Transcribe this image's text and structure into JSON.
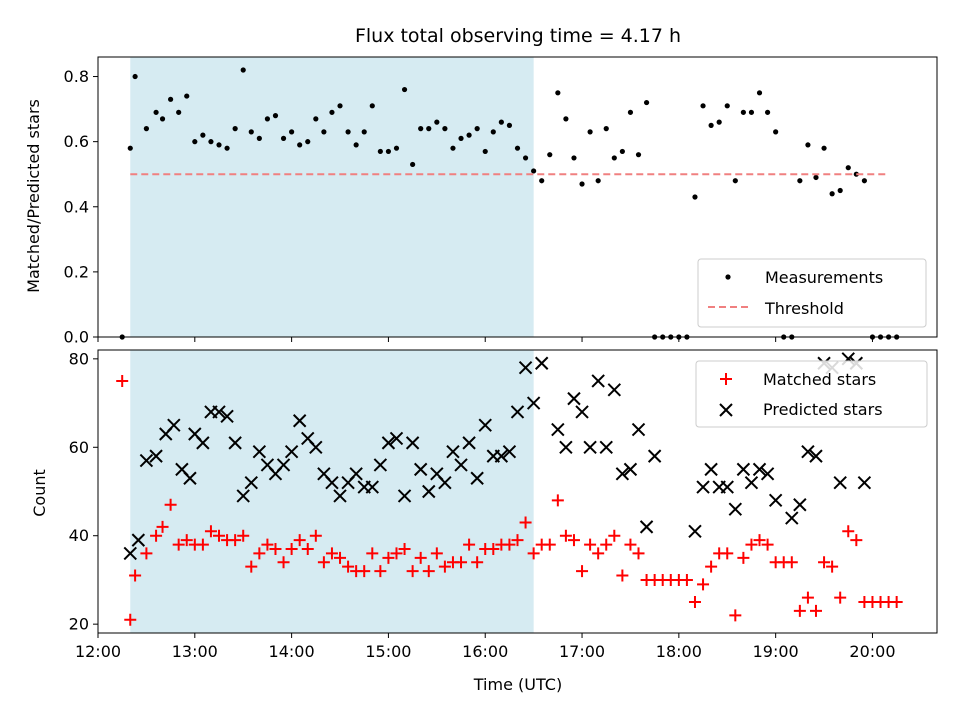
{
  "chart_data": {
    "type": "scatter",
    "title": "Flux total observing time = 4.17 h",
    "xlabel": "Time (UTC)",
    "xlim": [
      "12:00",
      "20:40"
    ],
    "xticks": [
      "12:00",
      "13:00",
      "14:00",
      "15:00",
      "16:00",
      "17:00",
      "18:00",
      "19:00",
      "20:00"
    ],
    "highlight_span": {
      "from": "12:20",
      "to": "16:30",
      "color": "#add8e6"
    },
    "panels": [
      {
        "id": "ratio",
        "ylabel": "Matched/Predicted stars",
        "ylim": [
          0,
          0.86
        ],
        "yticks": [
          "0.0",
          "0.2",
          "0.4",
          "0.6",
          "0.8"
        ],
        "legend_position": "lower-right",
        "series": [
          {
            "name": "Measurements",
            "marker": "dot",
            "color": "#000000",
            "x": [
              "12:15",
              "12:20",
              "12:23",
              "12:30",
              "12:36",
              "12:40",
              "12:45",
              "12:50",
              "12:55",
              "13:00",
              "13:05",
              "13:10",
              "13:15",
              "13:20",
              "13:25",
              "13:30",
              "13:35",
              "13:40",
              "13:45",
              "13:50",
              "13:55",
              "14:00",
              "14:05",
              "14:10",
              "14:15",
              "14:20",
              "14:25",
              "14:30",
              "14:35",
              "14:40",
              "14:45",
              "14:50",
              "14:55",
              "15:00",
              "15:05",
              "15:10",
              "15:15",
              "15:20",
              "15:25",
              "15:30",
              "15:35",
              "15:40",
              "15:45",
              "15:50",
              "15:55",
              "16:00",
              "16:05",
              "16:10",
              "16:15",
              "16:20",
              "16:25",
              "16:30",
              "16:35",
              "16:40",
              "16:45",
              "16:50",
              "16:55",
              "17:00",
              "17:05",
              "17:10",
              "17:15",
              "17:20",
              "17:25",
              "17:30",
              "17:35",
              "17:40",
              "17:45",
              "17:50",
              "17:55",
              "18:00",
              "18:05",
              "18:10",
              "18:15",
              "18:20",
              "18:25",
              "18:30",
              "18:35",
              "18:40",
              "18:45",
              "18:50",
              "18:55",
              "19:00",
              "19:05",
              "19:10",
              "19:15",
              "19:20",
              "19:25",
              "19:30",
              "19:35",
              "19:40",
              "19:45",
              "19:50",
              "19:55",
              "20:00",
              "20:05",
              "20:10",
              "20:15"
            ],
            "y": [
              0.0,
              0.58,
              0.8,
              0.64,
              0.69,
              0.67,
              0.73,
              0.69,
              0.74,
              0.6,
              0.62,
              0.6,
              0.59,
              0.58,
              0.64,
              0.82,
              0.63,
              0.61,
              0.67,
              0.68,
              0.61,
              0.63,
              0.59,
              0.6,
              0.67,
              0.63,
              0.69,
              0.71,
              0.63,
              0.59,
              0.63,
              0.71,
              0.57,
              0.57,
              0.58,
              0.76,
              0.53,
              0.64,
              0.64,
              0.66,
              0.64,
              0.58,
              0.61,
              0.62,
              0.64,
              0.57,
              0.63,
              0.66,
              0.65,
              0.58,
              0.55,
              0.51,
              0.48,
              0.56,
              0.75,
              0.67,
              0.55,
              0.47,
              0.63,
              0.48,
              0.64,
              0.55,
              0.57,
              0.69,
              0.56,
              0.72,
              0.0,
              0.0,
              0.0,
              0.0,
              0.0,
              0.43,
              0.71,
              0.65,
              0.66,
              0.71,
              0.48,
              0.69,
              0.69,
              0.75,
              0.69,
              0.63,
              0.0,
              0.0,
              0.48,
              0.59,
              0.49,
              0.58,
              0.44,
              0.45,
              0.52,
              0.5,
              0.48,
              0.0,
              0.0,
              0.0,
              0.0
            ]
          },
          {
            "name": "Threshold",
            "marker": "dashed-line",
            "color": "#f08080",
            "x": [
              "12:20",
              "20:10"
            ],
            "y": [
              0.5,
              0.5
            ]
          }
        ]
      },
      {
        "id": "count",
        "ylabel": "Count",
        "ylim": [
          18,
          82
        ],
        "yticks": [
          "20",
          "40",
          "60",
          "80"
        ],
        "legend_position": "top-right",
        "series": [
          {
            "name": "Matched stars",
            "marker": "plus",
            "color": "#ff0000",
            "x": [
              "12:15",
              "12:20",
              "12:23",
              "12:30",
              "12:36",
              "12:40",
              "12:45",
              "12:50",
              "12:55",
              "13:00",
              "13:05",
              "13:10",
              "13:15",
              "13:20",
              "13:25",
              "13:30",
              "13:35",
              "13:40",
              "13:45",
              "13:50",
              "13:55",
              "14:00",
              "14:05",
              "14:10",
              "14:15",
              "14:20",
              "14:25",
              "14:30",
              "14:35",
              "14:40",
              "14:45",
              "14:50",
              "14:55",
              "15:00",
              "15:05",
              "15:10",
              "15:15",
              "15:20",
              "15:25",
              "15:30",
              "15:35",
              "15:40",
              "15:45",
              "15:50",
              "15:55",
              "16:00",
              "16:05",
              "16:10",
              "16:15",
              "16:20",
              "16:25",
              "16:30",
              "16:35",
              "16:40",
              "16:45",
              "16:50",
              "16:55",
              "17:00",
              "17:05",
              "17:10",
              "17:15",
              "17:20",
              "17:25",
              "17:30",
              "17:35",
              "17:40",
              "17:45",
              "17:50",
              "17:55",
              "18:00",
              "18:05",
              "18:10",
              "18:15",
              "18:20",
              "18:25",
              "18:30",
              "18:35",
              "18:40",
              "18:45",
              "18:50",
              "18:55",
              "19:00",
              "19:05",
              "19:10",
              "19:15",
              "19:20",
              "19:25",
              "19:30",
              "19:35",
              "19:40",
              "19:45",
              "19:50",
              "19:55",
              "20:00",
              "20:05",
              "20:10",
              "20:15"
            ],
            "y": [
              75,
              21,
              31,
              36,
              40,
              42,
              47,
              38,
              39,
              38,
              38,
              41,
              40,
              39,
              39,
              40,
              33,
              36,
              38,
              37,
              34,
              37,
              39,
              37,
              40,
              34,
              36,
              35,
              33,
              32,
              32,
              36,
              32,
              35,
              36,
              37,
              32,
              35,
              32,
              36,
              33,
              34,
              34,
              38,
              34,
              37,
              37,
              38,
              38,
              39,
              43,
              36,
              38,
              38,
              48,
              40,
              39,
              32,
              38,
              36,
              38,
              40,
              31,
              38,
              36,
              30,
              30,
              30,
              30,
              30,
              30,
              25,
              29,
              33,
              36,
              36,
              22,
              35,
              38,
              39,
              38,
              34,
              34,
              34,
              23,
              26,
              23,
              34,
              33,
              26,
              41,
              39,
              25,
              25,
              25,
              25,
              25
            ]
          },
          {
            "name": "Predicted stars",
            "marker": "x",
            "color": "#000000",
            "x": [
              "12:20",
              "12:25",
              "12:30",
              "12:36",
              "12:42",
              "12:47",
              "12:52",
              "12:57",
              "13:00",
              "13:05",
              "13:10",
              "13:15",
              "13:20",
              "13:25",
              "13:30",
              "13:35",
              "13:40",
              "13:45",
              "13:50",
              "13:55",
              "14:00",
              "14:05",
              "14:10",
              "14:15",
              "14:20",
              "14:25",
              "14:30",
              "14:35",
              "14:40",
              "14:45",
              "14:50",
              "14:55",
              "15:00",
              "15:05",
              "15:10",
              "15:15",
              "15:20",
              "15:25",
              "15:30",
              "15:35",
              "15:40",
              "15:45",
              "15:50",
              "15:55",
              "16:00",
              "16:05",
              "16:10",
              "16:15",
              "16:20",
              "16:25",
              "16:30",
              "16:35",
              "16:45",
              "16:50",
              "16:55",
              "17:00",
              "17:05",
              "17:10",
              "17:15",
              "17:20",
              "17:25",
              "17:30",
              "17:35",
              "17:40",
              "17:45",
              "18:10",
              "18:15",
              "18:20",
              "18:25",
              "18:30",
              "18:35",
              "18:40",
              "18:45",
              "18:50",
              "18:55",
              "19:00",
              "19:10",
              "19:15",
              "19:20",
              "19:25",
              "19:30",
              "19:35",
              "19:40",
              "19:45",
              "19:50",
              "19:55"
            ],
            "y": [
              36,
              39,
              57,
              58,
              63,
              65,
              55,
              53,
              63,
              61,
              68,
              68,
              67,
              61,
              49,
              52,
              59,
              56,
              54,
              56,
              59,
              66,
              62,
              60,
              54,
              52,
              49,
              52,
              54,
              51,
              51,
              56,
              61,
              62,
              49,
              61,
              55,
              50,
              54,
              52,
              59,
              56,
              61,
              53,
              65,
              58,
              58,
              59,
              68,
              78,
              70,
              79,
              64,
              60,
              71,
              68,
              60,
              75,
              60,
              73,
              54,
              55,
              64,
              42,
              58,
              41,
              51,
              55,
              51,
              51,
              46,
              55,
              52,
              55,
              54,
              48,
              44,
              47,
              59,
              58,
              79,
              78,
              52,
              80,
              79,
              52
            ]
          }
        ]
      }
    ]
  }
}
